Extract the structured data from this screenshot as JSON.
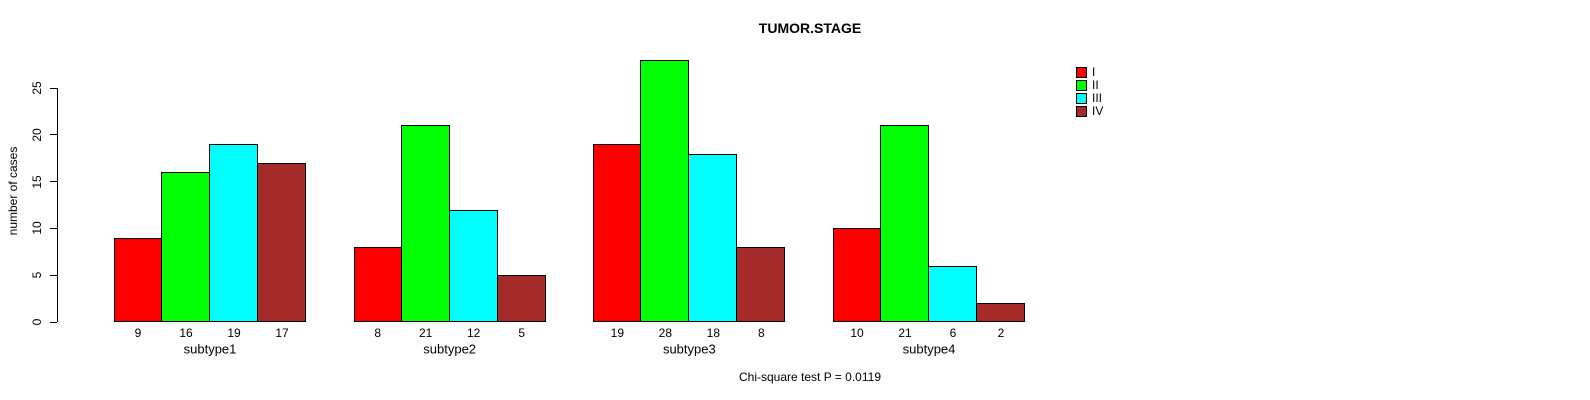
{
  "figure": {
    "background": "#FFFFFF",
    "text_color": "#000000"
  },
  "chart_data": {
    "type": "bar",
    "title": "TUMOR.STAGE",
    "ylabel": "number of cases",
    "xlabel": "",
    "caption": "Chi-square test P = 0.0119",
    "categories": [
      "subtype1",
      "subtype2",
      "subtype3",
      "subtype4"
    ],
    "series": [
      {
        "name": "I",
        "color": "#FF0000",
        "values": [
          9,
          8,
          19,
          10
        ]
      },
      {
        "name": "II",
        "color": "#00FF00",
        "values": [
          16,
          21,
          28,
          21
        ]
      },
      {
        "name": "III",
        "color": "#00FFFF",
        "values": [
          19,
          12,
          18,
          6
        ]
      },
      {
        "name": "IV",
        "color": "#A52A2A",
        "values": [
          17,
          5,
          8,
          2
        ]
      }
    ],
    "yticks": [
      0,
      5,
      10,
      15,
      20,
      25
    ],
    "ylim": [
      0,
      28
    ],
    "grid": false,
    "bar_borders": "#000000",
    "bar_value_labels": [
      [
        9,
        16,
        19,
        17
      ],
      [
        8,
        21,
        12,
        5
      ],
      [
        19,
        28,
        18,
        8
      ],
      [
        10,
        21,
        6,
        2
      ]
    ],
    "legend": {
      "position": "top-right",
      "box": false,
      "entries": [
        "I",
        "II",
        "III",
        "IV"
      ]
    }
  }
}
